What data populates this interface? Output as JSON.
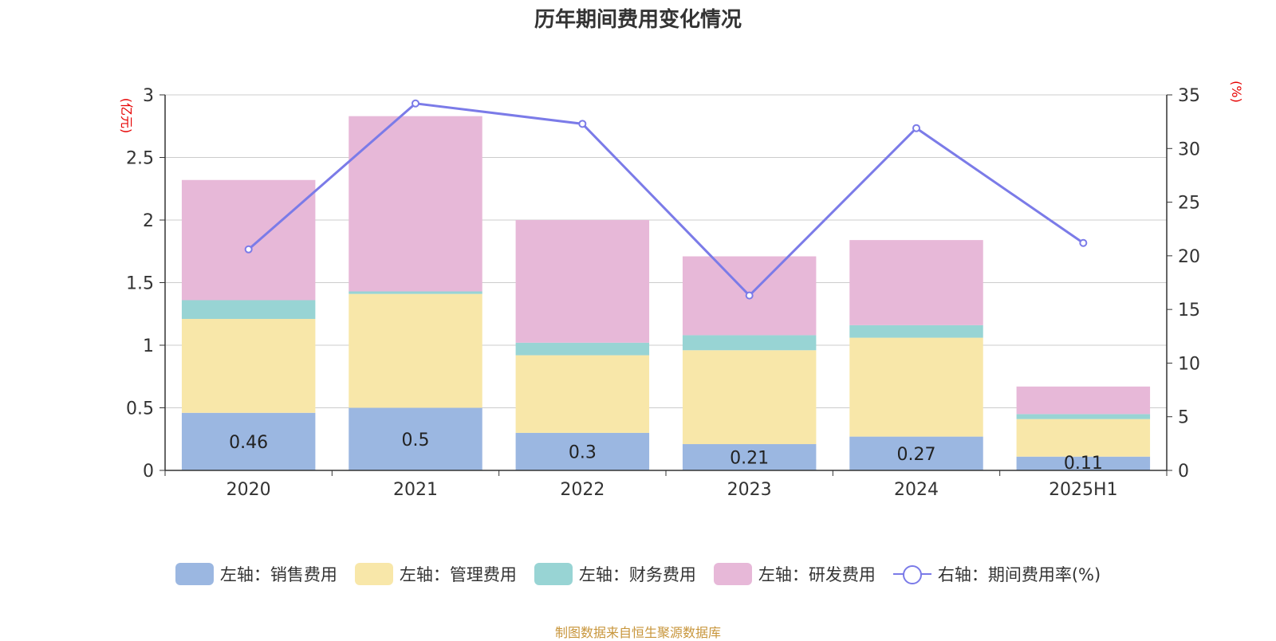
{
  "chart_data": {
    "type": "bar",
    "title": "历年期间费用变化情况",
    "categories": [
      "2020",
      "2021",
      "2022",
      "2023",
      "2024",
      "2025H1"
    ],
    "left_axis": {
      "unit_label": "(亿元)",
      "ylim": [
        0,
        3
      ],
      "ticks": [
        "0",
        "0.5",
        "1",
        "1.5",
        "2",
        "2.5",
        "3"
      ]
    },
    "right_axis": {
      "unit_label": "(%)",
      "ylim": [
        0,
        35
      ],
      "ticks": [
        "0",
        "5",
        "10",
        "15",
        "20",
        "25",
        "30",
        "35"
      ]
    },
    "series": [
      {
        "name": "左轴：销售费用",
        "type": "bar",
        "stack": true,
        "color": "#9bb7e1",
        "values": [
          0.46,
          0.5,
          0.3,
          0.21,
          0.27,
          0.11
        ],
        "labels": [
          "0.46",
          "0.5",
          "0.3",
          "0.21",
          "0.27",
          "0.11"
        ]
      },
      {
        "name": "左轴：管理费用",
        "type": "bar",
        "stack": true,
        "color": "#f8e7a9",
        "values": [
          0.75,
          0.91,
          0.62,
          0.75,
          0.79,
          0.3
        ]
      },
      {
        "name": "左轴：财务费用",
        "type": "bar",
        "stack": true,
        "color": "#98d4d4",
        "values": [
          0.15,
          0.02,
          0.1,
          0.12,
          0.1,
          0.04
        ]
      },
      {
        "name": "左轴：研发费用",
        "type": "bar",
        "stack": true,
        "color": "#e7b8d8",
        "values": [
          0.96,
          1.4,
          0.98,
          0.63,
          0.68,
          0.22
        ]
      },
      {
        "name": "右轴：期间费用率(%)",
        "type": "line",
        "axis": "right",
        "color": "#7b7be8",
        "values": [
          20.6,
          34.2,
          32.3,
          16.3,
          31.9,
          21.2
        ]
      }
    ],
    "grid": true,
    "legend_position": "bottom"
  },
  "source_note": "制图数据来自恒生聚源数据库"
}
